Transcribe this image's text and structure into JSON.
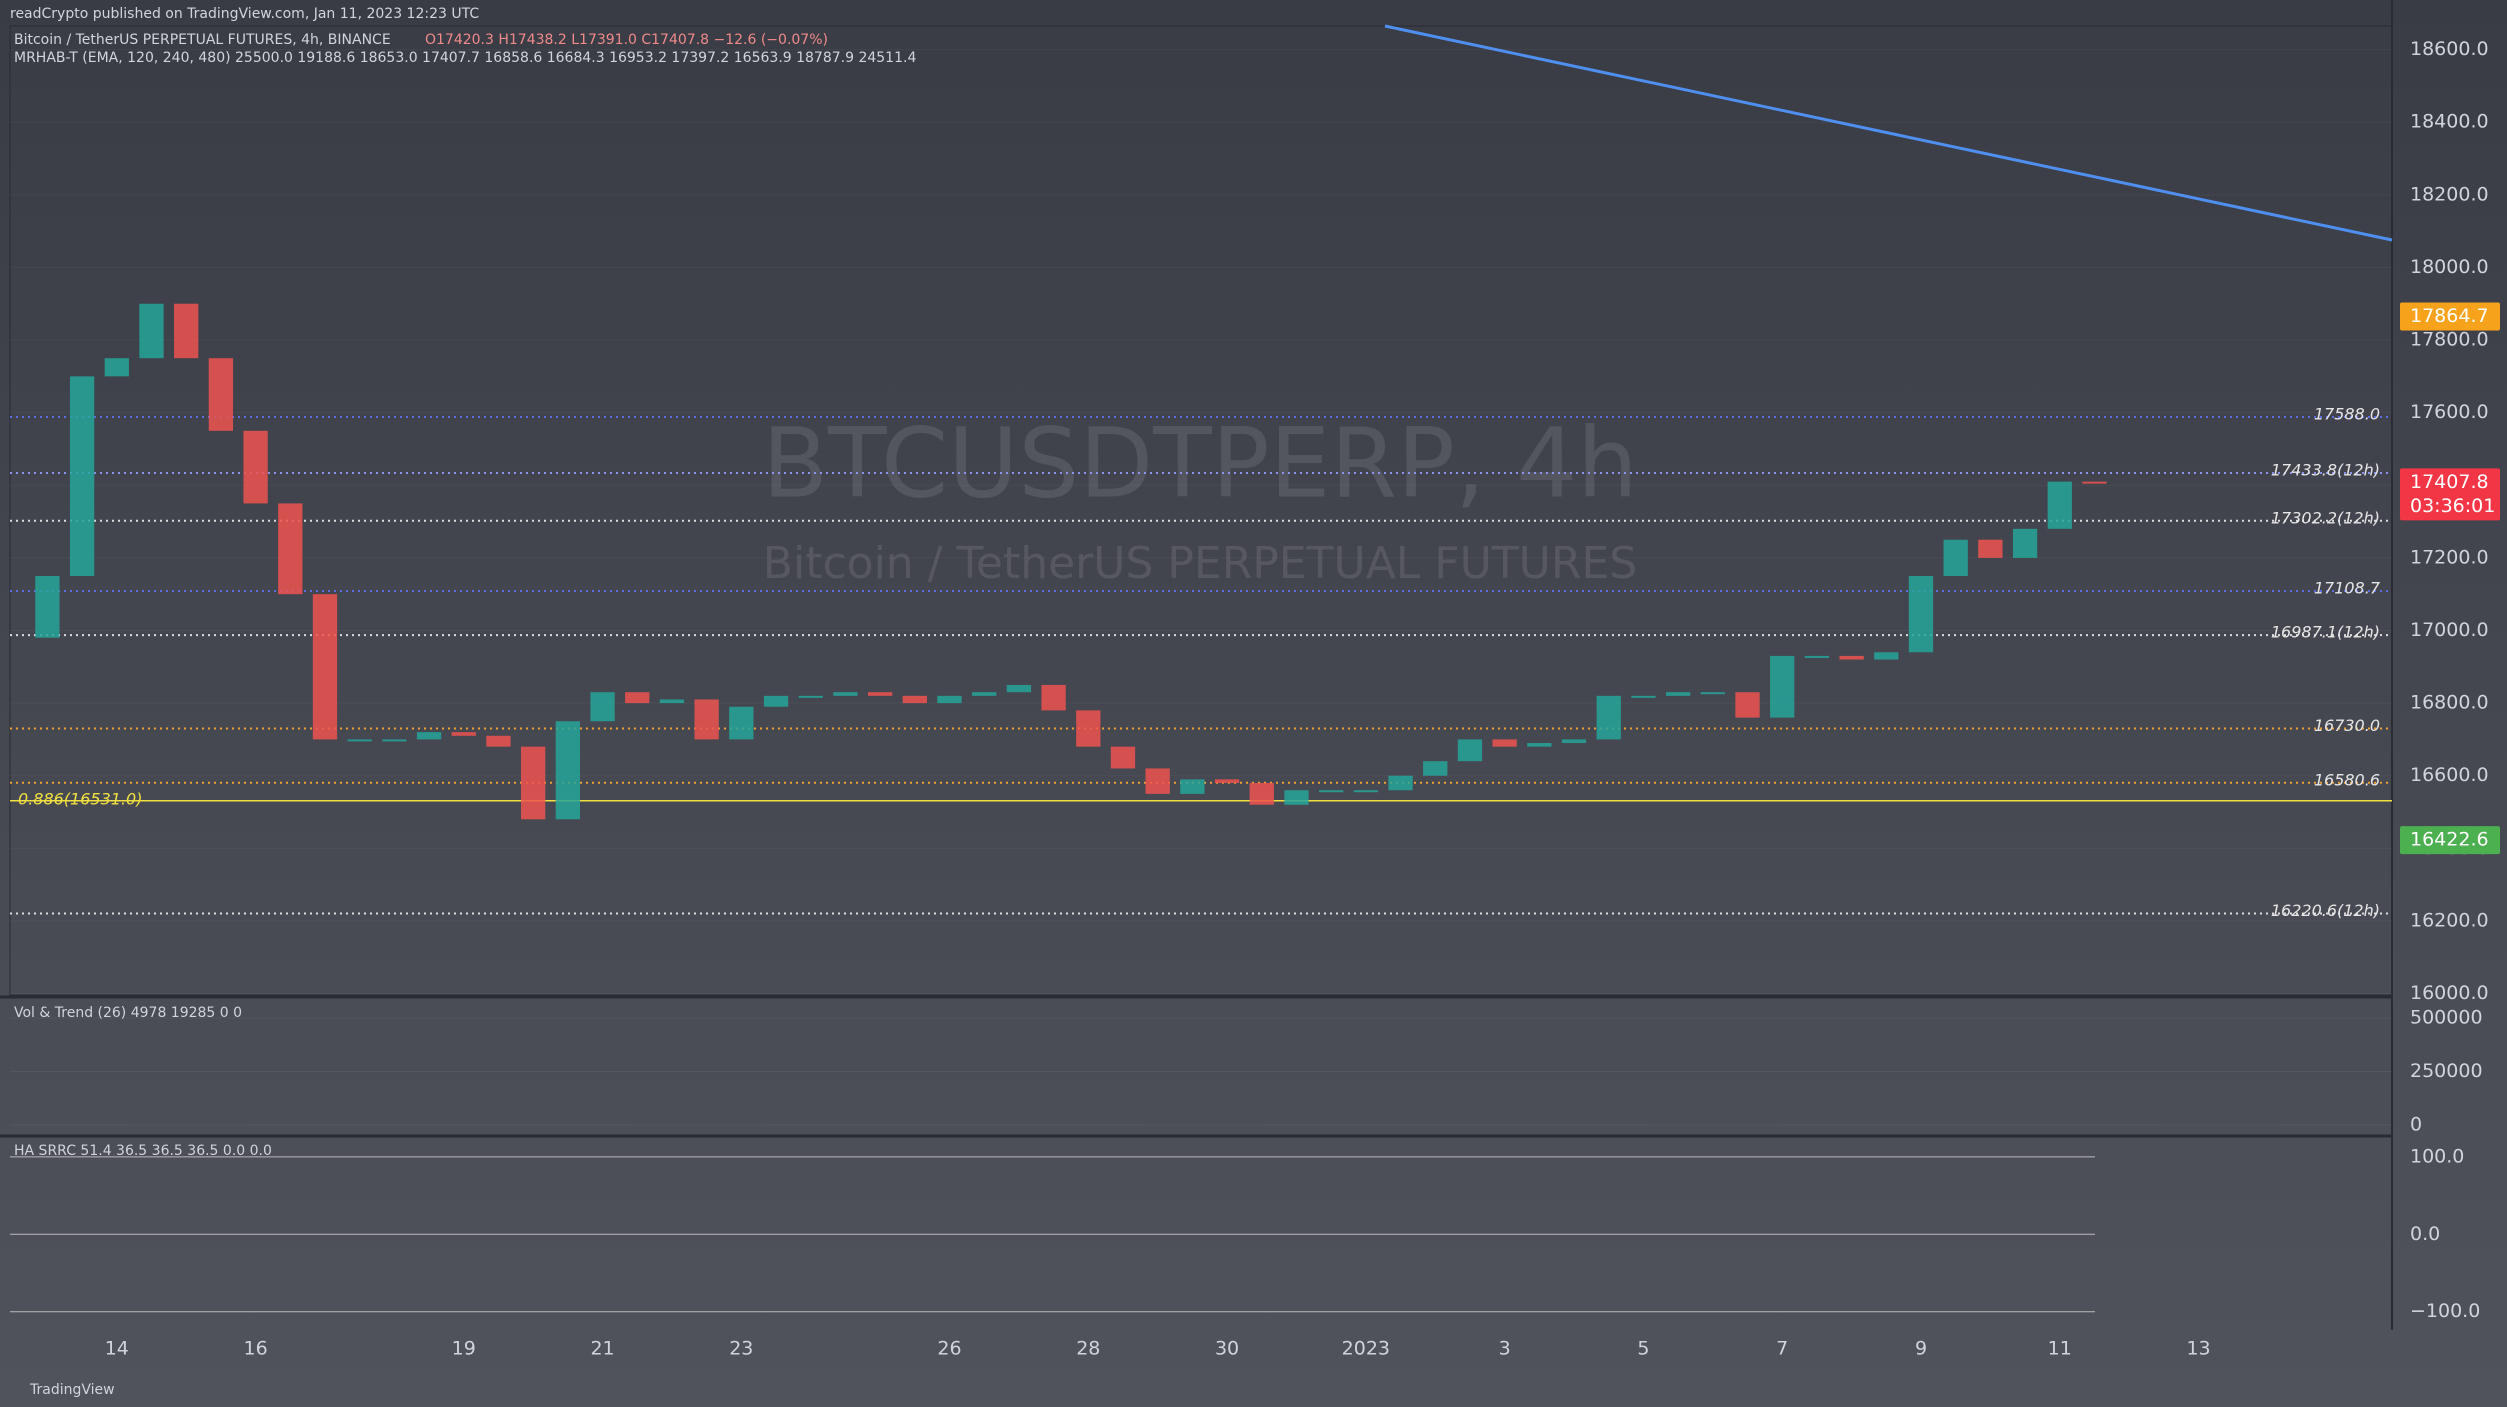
{
  "header": {
    "publisher": "readCrypto published on TradingView.com, Jan 11, 2023 12:23 UTC",
    "symbol": "Bitcoin / TetherUS PERPETUAL FUTURES, 4h, BINANCE",
    "ohlc": "O17420.3 H17438.2 L17391.0 C17407.8 −12.6 (−0.07%)",
    "indicator": "MRHAB-T (EMA, 120, 240, 480) 25500.0 19188.6 18653.0 17407.7 16858.6 16684.3 16953.2 17397.2 16563.9 18787.9 24511.4"
  },
  "watermark": {
    "symbol": "BTCUSDTPERP, 4h",
    "description": "Bitcoin / TetherUS PERPETUAL FUTURES"
  },
  "chart_data": {
    "type": "candlestick",
    "up_color": "#26a69a",
    "down_color": "#ef5350",
    "values": [
      16980,
      17150,
      17700,
      17750,
      17900,
      17750,
      17550,
      17350,
      17100,
      16700,
      16700,
      16700,
      16720,
      16710,
      16680,
      16480,
      16750,
      16830,
      16800,
      16810,
      16700,
      16790,
      16820,
      16820,
      16830,
      16820,
      16800,
      16820,
      16830,
      16850,
      16780,
      16680,
      16620,
      16550,
      16590,
      16580,
      16520,
      16560,
      16560,
      16560,
      16600,
      16640,
      16700,
      16680,
      16690,
      16700,
      16820,
      16820,
      16830,
      16830,
      16760,
      16930,
      16930,
      16920,
      16940,
      17150,
      17250,
      17200,
      17280,
      17410,
      17408
    ],
    "ylim": [
      15996,
      18665
    ],
    "yticks": [
      {
        "value": 16000,
        "label": "16000.0"
      },
      {
        "value": 16200,
        "label": "16200.0"
      },
      {
        "value": 16400,
        "label": "16400.0"
      },
      {
        "value": 16600,
        "label": "16600.0"
      },
      {
        "value": 16800,
        "label": "16800.0"
      },
      {
        "value": 17000,
        "label": "17000.0"
      },
      {
        "value": 17200,
        "label": "17200.0"
      },
      {
        "value": 17400,
        "label": "17400.0"
      },
      {
        "value": 17600,
        "label": "17600.0"
      },
      {
        "value": 17800,
        "label": "17800.0"
      },
      {
        "value": 18000,
        "label": "18000.0"
      },
      {
        "value": 18200,
        "label": "18200.0"
      },
      {
        "value": 18400,
        "label": "18400.0"
      },
      {
        "value": 18600,
        "label": "18600.0"
      }
    ],
    "levels": [
      {
        "value": 17588.0,
        "label": "17588.0",
        "color": "#5b6ee8"
      },
      {
        "value": 17433.8,
        "label": "17433.8(12h)",
        "color": "#8a94f0"
      },
      {
        "value": 17302.2,
        "label": "17302.2(12h)",
        "color": "#dddddd"
      },
      {
        "value": 17108.7,
        "label": "17108.7",
        "color": "#5b6ee8"
      },
      {
        "value": 16987.1,
        "label": "16987.1(12h)",
        "color": "#dddddd"
      },
      {
        "value": 16730.0,
        "label": "16730.0",
        "color": "#f0a030"
      },
      {
        "value": 16580.6,
        "label": "16580.6",
        "color": "#f0a030"
      },
      {
        "value": 16220.6,
        "label": "16220.6(12h)",
        "color": "#dddddd"
      }
    ],
    "fib_level": {
      "value": 16531.0,
      "label": "0.886(16531.0)",
      "color": "#f0e040"
    },
    "badges": [
      {
        "value": 17864.7,
        "label": "17864.7",
        "color": "#f7a21b"
      },
      {
        "value": 17407.8,
        "label": "17407.8",
        "countdown": "03:36:01",
        "color": "#f23645"
      },
      {
        "value": 16422.6,
        "label": "16422.6",
        "color": "#4caf50"
      }
    ]
  },
  "volume_pane": {
    "title": "Vol & Trend (26) 4978 19285 0 0",
    "ylim": [
      -37400,
      584000
    ],
    "yticks": [
      0,
      250000,
      500000
    ]
  },
  "oscillator_pane": {
    "title": "HA SRRC 51.4 36.5 36.5 36.5 0.0 0.0",
    "ylim": [
      -121,
      123
    ],
    "yticks": [
      {
        "value": 100,
        "label": "100.0"
      },
      {
        "value": 0,
        "label": "0.0"
      },
      {
        "value": -100,
        "label": "−100.0"
      }
    ]
  },
  "x_axis": {
    "labels": [
      "14",
      "16",
      "19",
      "21",
      "23",
      "26",
      "28",
      "30",
      "2023",
      "3",
      "5",
      "7",
      "9",
      "11",
      "13"
    ]
  },
  "footer": "TradingView"
}
